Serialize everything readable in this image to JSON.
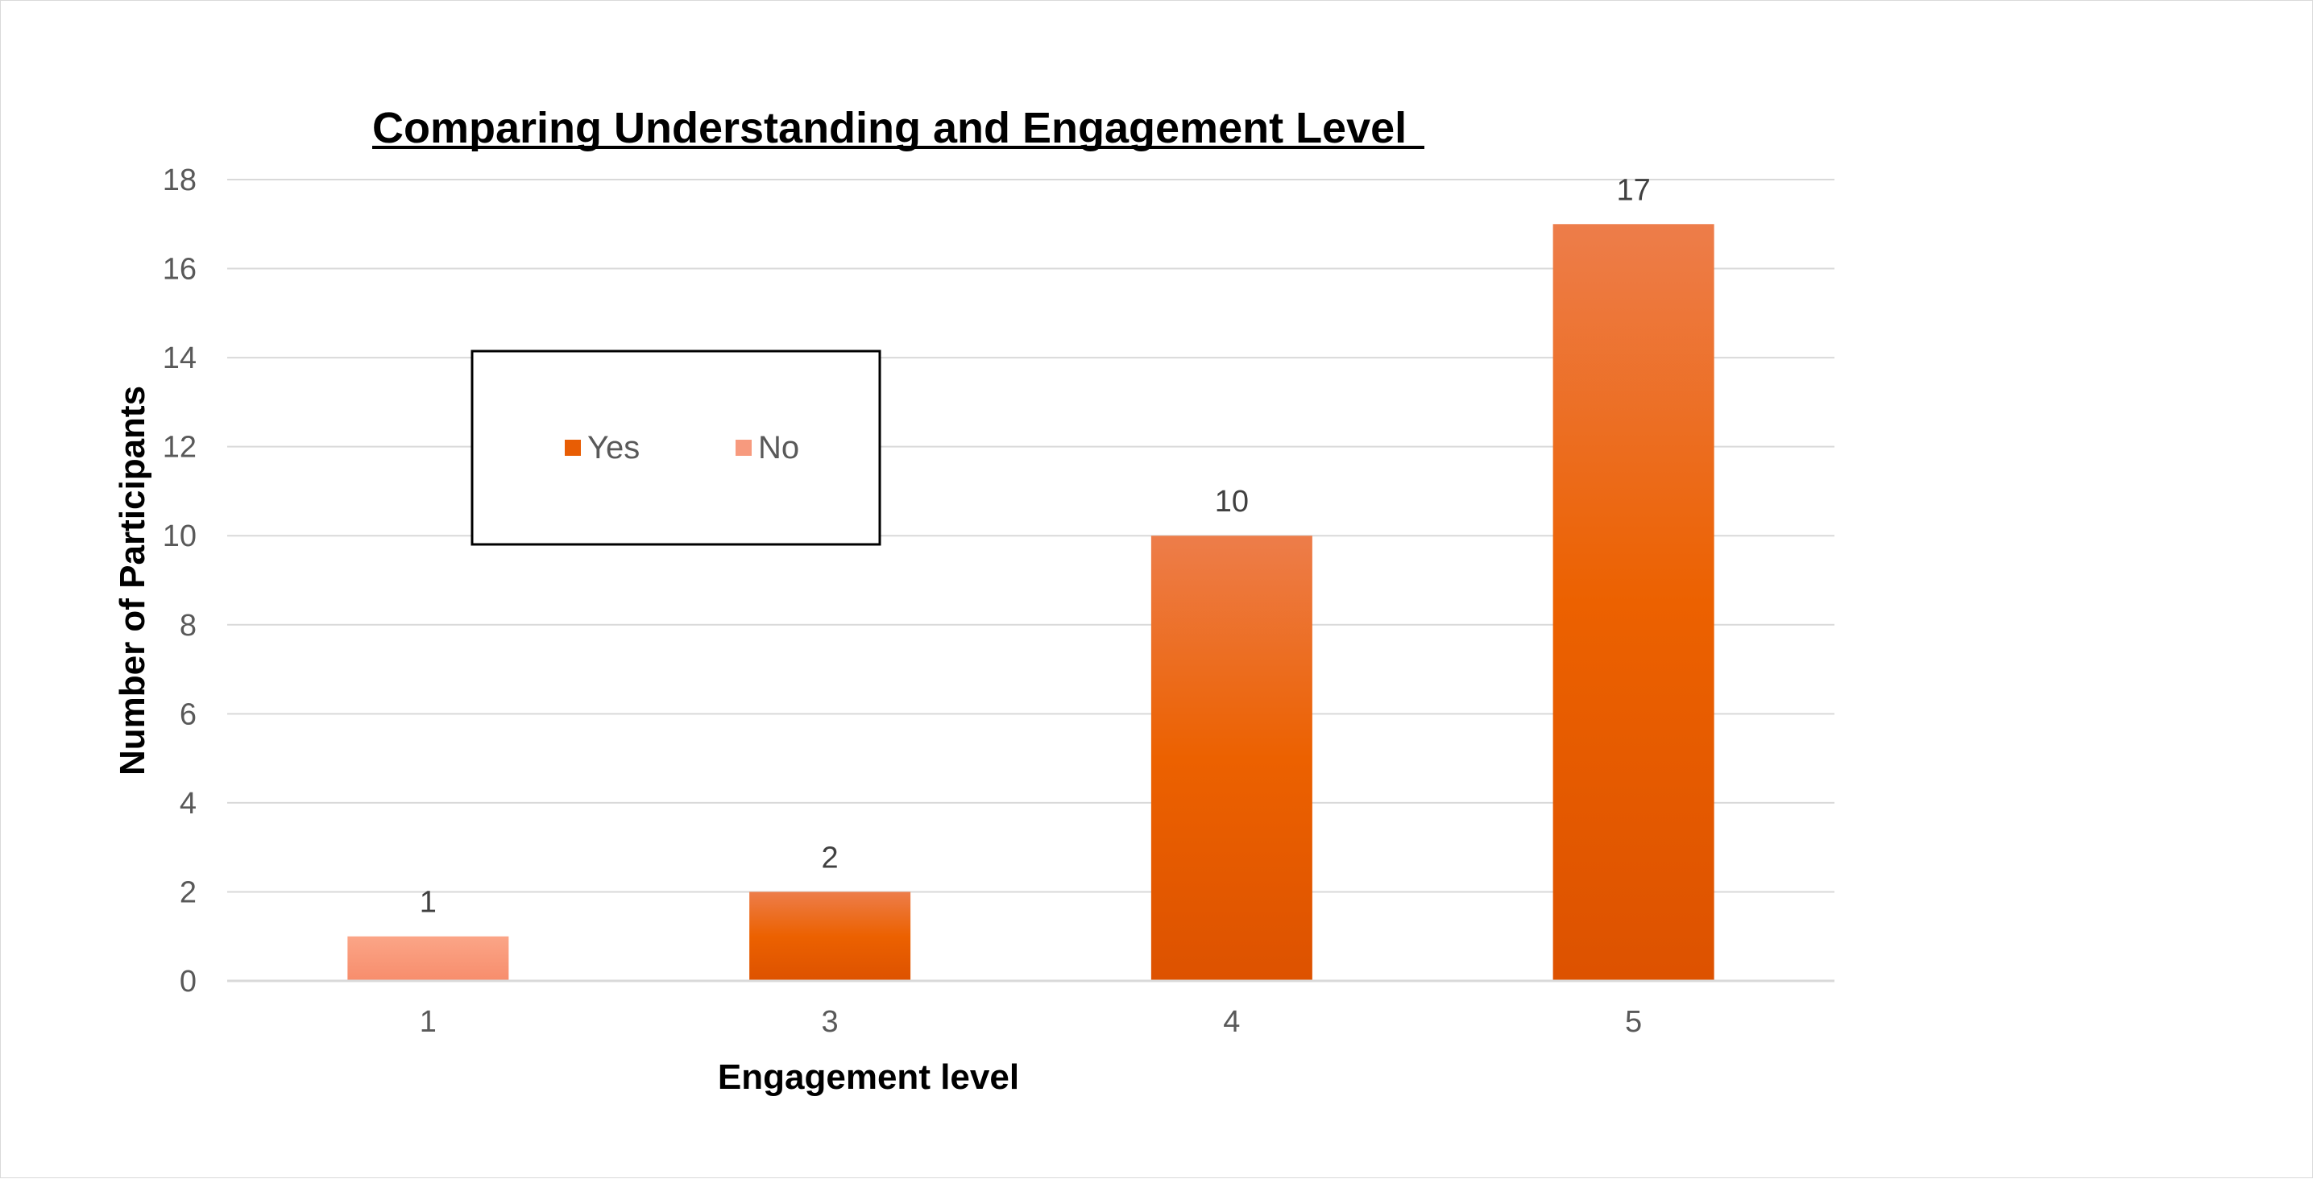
{
  "chart_data": {
    "type": "bar",
    "title": "Comparing Understanding and Engagement Level",
    "xlabel": "Engagement level",
    "ylabel": "Number of Participants",
    "categories": [
      "1",
      "3",
      "4",
      "5"
    ],
    "series": [
      {
        "name": "Yes",
        "color": "#E85D04",
        "values": [
          null,
          2,
          10,
          17
        ]
      },
      {
        "name": "No",
        "color": "#F79A7E",
        "values": [
          1,
          null,
          null,
          null
        ]
      }
    ],
    "ylim": [
      0,
      18
    ],
    "yticks": [
      0,
      2,
      4,
      6,
      8,
      10,
      12,
      14,
      16,
      18
    ],
    "grid": true,
    "legend": "inside-top-left",
    "data_labels": true
  }
}
